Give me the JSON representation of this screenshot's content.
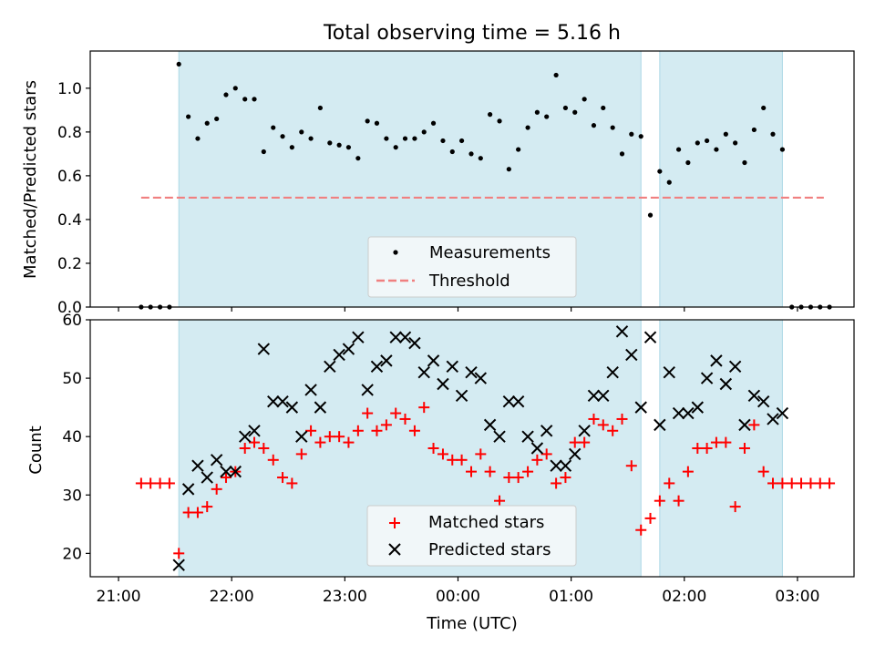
{
  "title": "Total observing time = 5.16 h",
  "colors": {
    "observing_window": "#add8e6",
    "measurement": "#000000",
    "threshold": "#f08080",
    "matched": "#ff0000",
    "predicted": "#000000"
  },
  "chart_data": [
    {
      "type": "scatter",
      "ylabel": "Matched/Predicted stars",
      "xlim": [
        -0.25,
        6.5
      ],
      "ylim": [
        0,
        1.17
      ],
      "yticks": [
        0.0,
        0.2,
        0.4,
        0.6,
        0.8,
        1.0
      ],
      "ytick_labels": [
        "0.0",
        "0.2",
        "0.4",
        "0.6",
        "0.8",
        "1.0"
      ],
      "grid": false,
      "legend": "lower-center",
      "shaded_intervals": [
        [
          0.533,
          4.617
        ],
        [
          4.783,
          5.867
        ]
      ],
      "series": [
        {
          "name": "Measurements",
          "marker": "dot",
          "x": [
            0.2,
            0.283,
            0.367,
            0.45,
            0.533,
            0.617,
            0.7,
            0.783,
            0.867,
            0.95,
            1.033,
            1.117,
            1.2,
            1.283,
            1.367,
            1.45,
            1.533,
            1.617,
            1.7,
            1.783,
            1.867,
            1.95,
            2.033,
            2.117,
            2.2,
            2.283,
            2.367,
            2.45,
            2.533,
            2.617,
            2.7,
            2.783,
            2.867,
            2.95,
            3.033,
            3.117,
            3.2,
            3.283,
            3.367,
            3.45,
            3.533,
            3.617,
            3.7,
            3.783,
            3.867,
            3.95,
            4.033,
            4.117,
            4.2,
            4.283,
            4.367,
            4.45,
            4.533,
            4.617,
            4.7,
            4.783,
            4.867,
            4.95,
            5.033,
            5.117,
            5.2,
            5.283,
            5.367,
            5.45,
            5.533,
            5.617,
            5.7,
            5.783,
            5.867,
            5.95,
            6.033,
            6.117,
            6.2,
            6.283
          ],
          "y": [
            0,
            0,
            0,
            0,
            1.11,
            0.87,
            0.77,
            0.84,
            0.86,
            0.97,
            1.0,
            0.95,
            0.95,
            0.71,
            0.82,
            0.78,
            0.73,
            0.8,
            0.77,
            0.91,
            0.75,
            0.74,
            0.73,
            0.68,
            0.85,
            0.84,
            0.77,
            0.73,
            0.77,
            0.77,
            0.8,
            0.84,
            0.76,
            0.71,
            0.76,
            0.7,
            0.68,
            0.88,
            0.85,
            0.63,
            0.72,
            0.82,
            0.89,
            0.87,
            1.06,
            0.91,
            0.89,
            0.95,
            0.83,
            0.91,
            0.82,
            0.7,
            0.79,
            0.78,
            0.42,
            0.62,
            0.57,
            0.72,
            0.66,
            0.75,
            0.76,
            0.72,
            0.79,
            0.75,
            0.66,
            0.81,
            0.91,
            0.79,
            0.72,
            0,
            0,
            0,
            0,
            0
          ]
        },
        {
          "name": "Threshold",
          "style": "dashed",
          "x": [
            0.2,
            6.233
          ],
          "y": [
            0.5,
            0.5
          ]
        }
      ]
    },
    {
      "type": "scatter",
      "xlabel": "Time (UTC)",
      "ylabel": "Count",
      "xlim": [
        -0.25,
        6.5
      ],
      "ylim": [
        16,
        60
      ],
      "yticks": [
        20,
        30,
        40,
        50,
        60
      ],
      "ytick_labels": [
        "20",
        "30",
        "40",
        "50",
        "60"
      ],
      "xticks": [
        0,
        1,
        2,
        3,
        4,
        5,
        6
      ],
      "xtick_labels": [
        "21:00",
        "22:00",
        "23:00",
        "00:00",
        "01:00",
        "02:00",
        "03:00"
      ],
      "grid": false,
      "legend": "lower-center",
      "shaded_intervals": [
        [
          0.533,
          4.617
        ],
        [
          4.783,
          5.867
        ]
      ],
      "x": [
        0.2,
        0.283,
        0.367,
        0.45,
        0.533,
        0.617,
        0.7,
        0.783,
        0.867,
        0.95,
        1.033,
        1.117,
        1.2,
        1.283,
        1.367,
        1.45,
        1.533,
        1.617,
        1.7,
        1.783,
        1.867,
        1.95,
        2.033,
        2.117,
        2.2,
        2.283,
        2.367,
        2.45,
        2.533,
        2.617,
        2.7,
        2.783,
        2.867,
        2.95,
        3.033,
        3.117,
        3.2,
        3.283,
        3.367,
        3.45,
        3.533,
        3.617,
        3.7,
        3.783,
        3.867,
        3.95,
        4.033,
        4.117,
        4.2,
        4.283,
        4.367,
        4.45,
        4.533,
        4.617,
        4.7,
        4.783,
        4.867,
        4.95,
        5.033,
        5.117,
        5.2,
        5.283,
        5.367,
        5.45,
        5.533,
        5.617,
        5.7,
        5.783,
        5.867,
        5.95,
        6.033,
        6.117,
        6.2,
        6.283
      ],
      "series": [
        {
          "name": "Matched stars",
          "marker": "plus",
          "values": [
            32,
            32,
            32,
            32,
            20,
            27,
            27,
            28,
            31,
            33,
            34,
            38,
            39,
            38,
            36,
            33,
            32,
            37,
            41,
            39,
            40,
            40,
            39,
            41,
            44,
            41,
            42,
            44,
            43,
            41,
            45,
            38,
            37,
            36,
            36,
            34,
            37,
            34,
            29,
            33,
            33,
            34,
            36,
            37,
            32,
            33,
            39,
            39,
            43,
            42,
            41,
            43,
            35,
            24,
            26,
            29,
            32,
            29,
            34,
            38,
            38,
            39,
            39,
            28,
            38,
            42,
            34,
            32,
            32,
            32,
            32,
            32,
            32,
            32
          ]
        },
        {
          "name": "Predicted stars",
          "marker": "x",
          "values": [
            null,
            null,
            null,
            null,
            18,
            31,
            35,
            33,
            36,
            34,
            34,
            40,
            41,
            55,
            46,
            46,
            45,
            40,
            48,
            45,
            52,
            54,
            55,
            57,
            48,
            52,
            53,
            57,
            57,
            56,
            51,
            53,
            49,
            52,
            47,
            51,
            50,
            42,
            40,
            46,
            46,
            40,
            38,
            41,
            35,
            35,
            37,
            41,
            47,
            47,
            51,
            58,
            54,
            45,
            57,
            42,
            51,
            44,
            44,
            45,
            50,
            53,
            49,
            52,
            42,
            47,
            46,
            43,
            44,
            null,
            null,
            null,
            null,
            null
          ]
        }
      ]
    }
  ]
}
